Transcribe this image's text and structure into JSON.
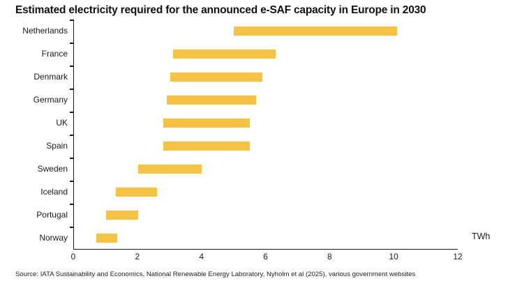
{
  "title": "Estimated electricity required for the announced e-SAF capacity in Europe in 2030",
  "unit_label": "TWh",
  "source": "Source: IATA Sustainability and Economics, National Renewable Energy Laboratory, Nyholm et al (2025), various government websites",
  "colors": {
    "bar": "#F5C242",
    "axis": "#1a1a1a",
    "text": "#1a1a1a"
  },
  "chart_data": {
    "type": "bar",
    "orientation": "horizontal",
    "bar_style": "floating-range",
    "title": "Estimated electricity required for the announced e-SAF capacity in Europe in 2030",
    "xlabel": "TWh",
    "ylabel": "",
    "xlim": [
      0,
      12
    ],
    "xticks": [
      0,
      2,
      4,
      6,
      8,
      10,
      12
    ],
    "grid": false,
    "legend": false,
    "categories": [
      "Netherlands",
      "France",
      "Denmark",
      "Germany",
      "UK",
      "Spain",
      "Sweden",
      "Iceland",
      "Portugal",
      "Norway"
    ],
    "series": [
      {
        "name": "Estimated electricity range (TWh)",
        "ranges": [
          {
            "low": 5.0,
            "high": 10.1
          },
          {
            "low": 3.1,
            "high": 6.3
          },
          {
            "low": 3.0,
            "high": 5.9
          },
          {
            "low": 2.9,
            "high": 5.7
          },
          {
            "low": 2.8,
            "high": 5.5
          },
          {
            "low": 2.8,
            "high": 5.5
          },
          {
            "low": 2.0,
            "high": 4.0
          },
          {
            "low": 1.3,
            "high": 2.6
          },
          {
            "low": 1.0,
            "high": 2.0
          },
          {
            "low": 0.7,
            "high": 1.35
          }
        ]
      }
    ]
  }
}
